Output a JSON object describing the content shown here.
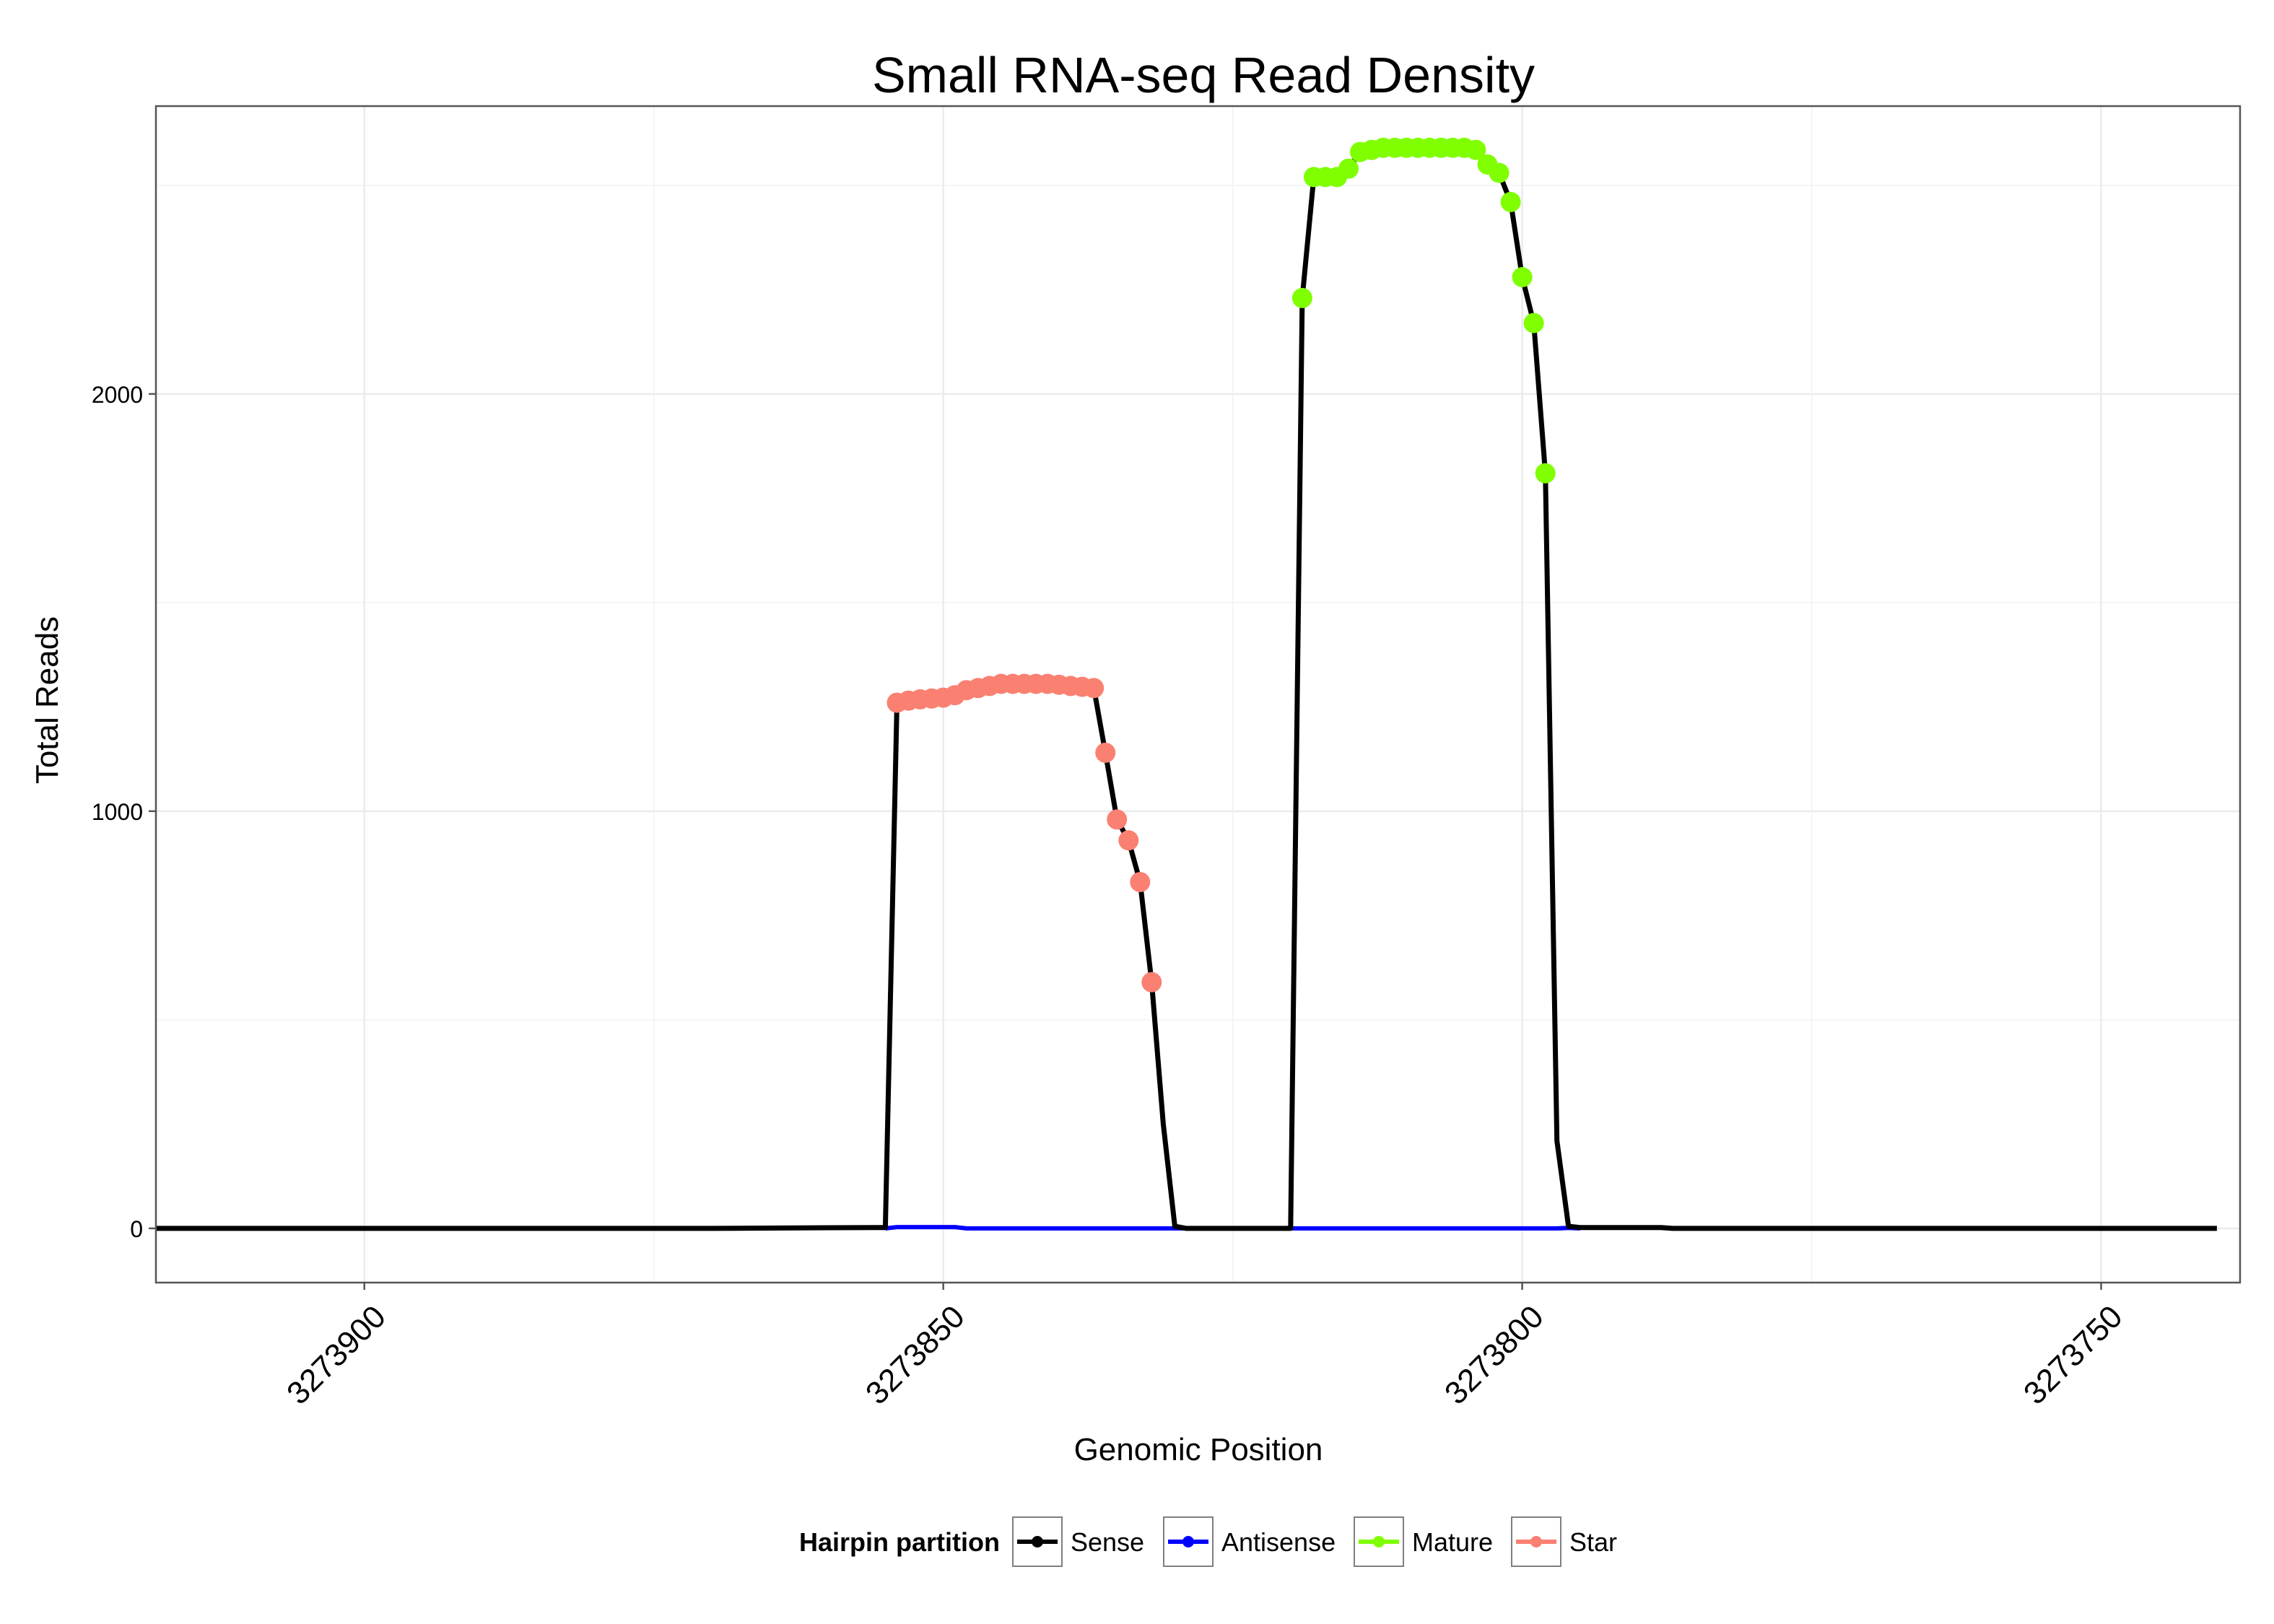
{
  "chart_data": {
    "type": "line",
    "title": "Small RNA-seq Read Density",
    "xlabel": "Genomic Position",
    "ylabel": "Total Reads",
    "x_reversed": true,
    "xlim": [
      3273918,
      3273738
    ],
    "ylim": [
      -130,
      2690
    ],
    "x_ticks": [
      3273900,
      3273850,
      3273800,
      3273750
    ],
    "x_tick_labels": [
      "3273900",
      "3273850",
      "3273800",
      "3273750"
    ],
    "y_ticks": [
      0,
      1000,
      2000
    ],
    "y_tick_labels": [
      "0",
      "1000",
      "2000"
    ],
    "grid": true,
    "legend": {
      "title": "Hairpin partition",
      "position": "bottom",
      "entries": [
        "Sense",
        "Antisense",
        "Mature",
        "Star"
      ]
    },
    "colors": {
      "Sense": "#000000",
      "Antisense": "#0000ff",
      "Mature": "#7fff00",
      "Star": "#fa8072"
    },
    "series": [
      {
        "name": "Sense",
        "style": "line",
        "color": "#000000",
        "points": [
          [
            3273918,
            0
          ],
          [
            3273870,
            0
          ],
          [
            3273856,
            2
          ],
          [
            3273855,
            2
          ],
          [
            3273854,
            1260
          ],
          [
            3273853,
            1265
          ],
          [
            3273852,
            1268
          ],
          [
            3273851,
            1270
          ],
          [
            3273850,
            1272
          ],
          [
            3273849,
            1278
          ],
          [
            3273848,
            1290
          ],
          [
            3273847,
            1295
          ],
          [
            3273846,
            1300
          ],
          [
            3273845,
            1305
          ],
          [
            3273844,
            1305
          ],
          [
            3273843,
            1305
          ],
          [
            3273842,
            1305
          ],
          [
            3273841,
            1305
          ],
          [
            3273840,
            1303
          ],
          [
            3273839,
            1300
          ],
          [
            3273838,
            1298
          ],
          [
            3273837,
            1295
          ],
          [
            3273836,
            1140
          ],
          [
            3273835,
            980
          ],
          [
            3273834,
            930
          ],
          [
            3273833,
            830
          ],
          [
            3273832,
            590
          ],
          [
            3273831,
            250
          ],
          [
            3273830,
            5
          ],
          [
            3273829,
            0
          ],
          [
            3273820,
            0
          ],
          [
            3273819,
            2230
          ],
          [
            3273818,
            2520
          ],
          [
            3273817,
            2520
          ],
          [
            3273816,
            2520
          ],
          [
            3273815,
            2540
          ],
          [
            3273814,
            2580
          ],
          [
            3273813,
            2585
          ],
          [
            3273812,
            2590
          ],
          [
            3273811,
            2590
          ],
          [
            3273810,
            2590
          ],
          [
            3273809,
            2590
          ],
          [
            3273808,
            2590
          ],
          [
            3273807,
            2590
          ],
          [
            3273806,
            2590
          ],
          [
            3273805,
            2590
          ],
          [
            3273804,
            2585
          ],
          [
            3273803,
            2550
          ],
          [
            3273802,
            2530
          ],
          [
            3273801,
            2460
          ],
          [
            3273800,
            2280
          ],
          [
            3273799,
            2170
          ],
          [
            3273798,
            1810
          ],
          [
            3273797,
            210
          ],
          [
            3273796,
            5
          ],
          [
            3273795,
            2
          ],
          [
            3273788,
            2
          ],
          [
            3273787,
            0
          ],
          [
            3273740,
            0
          ]
        ]
      },
      {
        "name": "Antisense",
        "style": "line",
        "color": "#0000ff",
        "points": [
          [
            3273855,
            0
          ],
          [
            3273854,
            3
          ],
          [
            3273849,
            3
          ],
          [
            3273848,
            0
          ],
          [
            3273797,
            0
          ],
          [
            3273796,
            1
          ],
          [
            3273795,
            0
          ]
        ]
      },
      {
        "name": "Mature",
        "style": "points",
        "color": "#7fff00",
        "points": [
          [
            3273819,
            2230
          ],
          [
            3273818,
            2520
          ],
          [
            3273817,
            2520
          ],
          [
            3273816,
            2520
          ],
          [
            3273815,
            2540
          ],
          [
            3273814,
            2580
          ],
          [
            3273813,
            2585
          ],
          [
            3273812,
            2590
          ],
          [
            3273811,
            2590
          ],
          [
            3273810,
            2590
          ],
          [
            3273809,
            2590
          ],
          [
            3273808,
            2590
          ],
          [
            3273807,
            2590
          ],
          [
            3273806,
            2590
          ],
          [
            3273805,
            2590
          ],
          [
            3273804,
            2585
          ],
          [
            3273803,
            2550
          ],
          [
            3273802,
            2530
          ],
          [
            3273801,
            2460
          ],
          [
            3273800,
            2280
          ],
          [
            3273799,
            2170
          ],
          [
            3273798,
            1810
          ]
        ]
      },
      {
        "name": "Star",
        "style": "points",
        "color": "#fa8072",
        "points": [
          [
            3273854,
            1260
          ],
          [
            3273853,
            1265
          ],
          [
            3273852,
            1268
          ],
          [
            3273851,
            1270
          ],
          [
            3273850,
            1272
          ],
          [
            3273849,
            1278
          ],
          [
            3273848,
            1290
          ],
          [
            3273847,
            1295
          ],
          [
            3273846,
            1300
          ],
          [
            3273845,
            1305
          ],
          [
            3273844,
            1305
          ],
          [
            3273843,
            1305
          ],
          [
            3273842,
            1305
          ],
          [
            3273841,
            1305
          ],
          [
            3273840,
            1303
          ],
          [
            3273839,
            1300
          ],
          [
            3273838,
            1298
          ],
          [
            3273837,
            1295
          ],
          [
            3273836,
            1140
          ],
          [
            3273835,
            980
          ],
          [
            3273834,
            930
          ],
          [
            3273833,
            830
          ],
          [
            3273832,
            590
          ]
        ]
      }
    ]
  }
}
